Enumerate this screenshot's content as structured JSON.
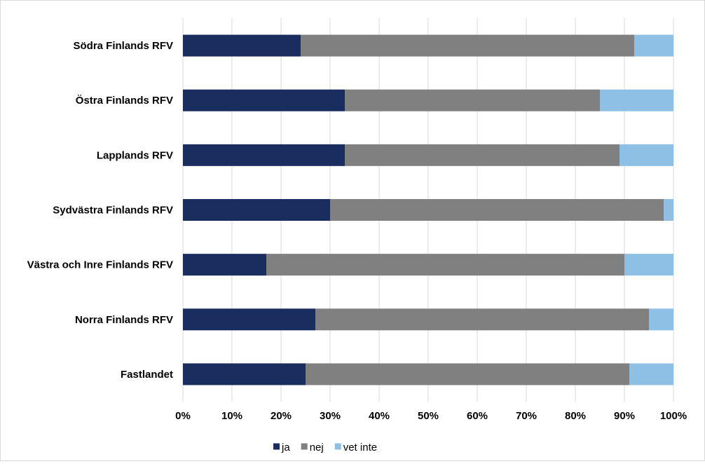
{
  "chart_data": {
    "type": "bar",
    "orientation": "horizontal",
    "stacked": "percent",
    "categories": [
      "Södra Finlands RFV",
      "Östra Finlands RFV",
      "Lapplands RFV",
      "Sydvästra Finlands RFV",
      "Västra och Inre Finlands RFV",
      "Norra Finlands RFV",
      "Fastlandet"
    ],
    "series": [
      {
        "name": "ja",
        "color": "#1a2d5f",
        "values": [
          24,
          33,
          33,
          30,
          17,
          27,
          25
        ]
      },
      {
        "name": "nej",
        "color": "#808080",
        "values": [
          68,
          52,
          56,
          68,
          73,
          68,
          66
        ]
      },
      {
        "name": "vet inte",
        "color": "#8dc0e4",
        "values": [
          8,
          15,
          11,
          2,
          10,
          5,
          9
        ]
      }
    ],
    "xlim": [
      0,
      100
    ],
    "xticks": [
      "0%",
      "10%",
      "20%",
      "30%",
      "40%",
      "50%",
      "60%",
      "70%",
      "80%",
      "90%",
      "100%"
    ],
    "grid": "vertical",
    "legend": "bottom-center"
  }
}
